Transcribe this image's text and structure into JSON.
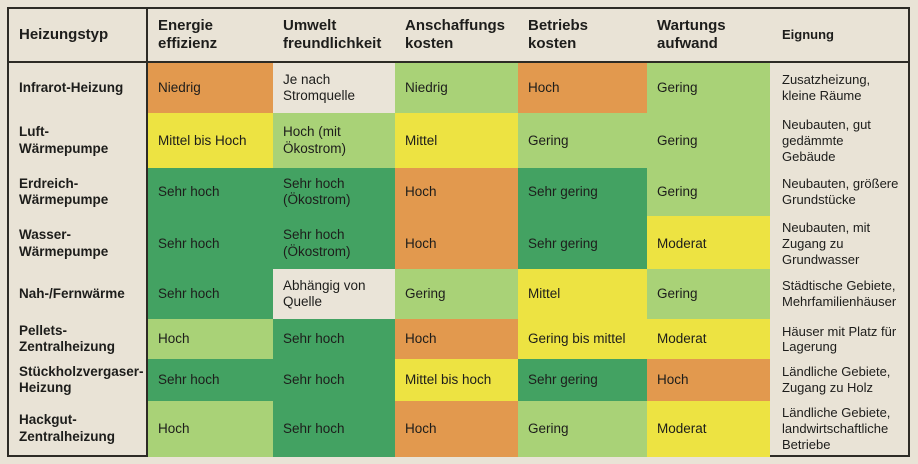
{
  "palette": {
    "orange": "#e2994e",
    "yellow": "#ede342",
    "light_green": "#a9d277",
    "dark_green": "#43a262",
    "neutral": "#eae4d8",
    "beige_bg": "#e9e3d6",
    "border": "#2d2b25",
    "text": "#1d1d1b"
  },
  "chart_data": {
    "type": "table",
    "title": "",
    "legend": "off",
    "color_levels": [
      "orange = ungünstig",
      "yellow = mittel",
      "light_green = gut",
      "dark_green = sehr gut",
      "neutral = abhängig"
    ],
    "columns": [
      "Heizungstyp",
      "Energie\neffizienz",
      "Umwelt\nfreundlichkeit",
      "Anschaffungs\nkosten",
      "Betriebs\nkosten",
      "Wartungs\naufwand",
      "Eignung"
    ],
    "rows": [
      {
        "label": "Infrarot-Heizung",
        "cells": [
          {
            "text": "Niedrig",
            "color": "orange"
          },
          {
            "text": "Je nach\nStromquelle",
            "color": "neutral"
          },
          {
            "text": "Niedrig",
            "color": "light_green"
          },
          {
            "text": "Hoch",
            "color": "orange"
          },
          {
            "text": "Gering",
            "color": "light_green"
          }
        ],
        "eignung": "Zusatzheizung,\nkleine Räume"
      },
      {
        "label": "Luft-Wärmepumpe",
        "cells": [
          {
            "text": "Mittel bis Hoch",
            "color": "yellow"
          },
          {
            "text": "Hoch (mit\nÖkostrom)",
            "color": "light_green"
          },
          {
            "text": "Mittel",
            "color": "yellow"
          },
          {
            "text": "Gering",
            "color": "light_green"
          },
          {
            "text": "Gering",
            "color": "light_green"
          }
        ],
        "eignung": "Neubauten, gut\ngedämmte\nGebäude"
      },
      {
        "label": "Erdreich-\nWärmepumpe",
        "cells": [
          {
            "text": "Sehr hoch",
            "color": "dark_green"
          },
          {
            "text": "Sehr hoch\n(Ökostrom)",
            "color": "dark_green"
          },
          {
            "text": "Hoch",
            "color": "orange"
          },
          {
            "text": "Sehr gering",
            "color": "dark_green"
          },
          {
            "text": "Gering",
            "color": "light_green"
          }
        ],
        "eignung": "Neubauten, größere\nGrundstücke"
      },
      {
        "label": "Wasser-\nWärmepumpe",
        "cells": [
          {
            "text": "Sehr hoch",
            "color": "dark_green"
          },
          {
            "text": "Sehr hoch\n(Ökostrom)",
            "color": "dark_green"
          },
          {
            "text": "Hoch",
            "color": "orange"
          },
          {
            "text": "Sehr gering",
            "color": "dark_green"
          },
          {
            "text": "Moderat",
            "color": "yellow"
          }
        ],
        "eignung": "Neubauten, mit\nZugang zu\nGrundwasser"
      },
      {
        "label": "Nah-/Fernwärme",
        "cells": [
          {
            "text": "Sehr hoch",
            "color": "dark_green"
          },
          {
            "text": "Abhängig von\nQuelle",
            "color": "neutral"
          },
          {
            "text": "Gering",
            "color": "light_green"
          },
          {
            "text": "Mittel",
            "color": "yellow"
          },
          {
            "text": "Gering",
            "color": "light_green"
          }
        ],
        "eignung": "Städtische Gebiete,\nMehrfamilienhäuser"
      },
      {
        "label": "Pellets-\nZentralheizung",
        "cells": [
          {
            "text": "Hoch",
            "color": "light_green"
          },
          {
            "text": "Sehr hoch",
            "color": "dark_green"
          },
          {
            "text": "Hoch",
            "color": "orange"
          },
          {
            "text": "Gering bis mittel",
            "color": "yellow"
          },
          {
            "text": "Moderat",
            "color": "yellow"
          }
        ],
        "eignung": "Häuser mit Platz für\nLagerung"
      },
      {
        "label": "Stückholzvergaser-\nHeizung",
        "cells": [
          {
            "text": "Sehr hoch",
            "color": "dark_green"
          },
          {
            "text": "Sehr hoch",
            "color": "dark_green"
          },
          {
            "text": "Mittel bis hoch",
            "color": "yellow"
          },
          {
            "text": "Sehr gering",
            "color": "dark_green"
          },
          {
            "text": "Hoch",
            "color": "orange"
          }
        ],
        "eignung": "Ländliche Gebiete,\nZugang zu Holz"
      },
      {
        "label": "Hackgut-\nZentralheizung",
        "cells": [
          {
            "text": "Hoch",
            "color": "light_green"
          },
          {
            "text": "Sehr hoch",
            "color": "dark_green"
          },
          {
            "text": "Hoch",
            "color": "orange"
          },
          {
            "text": "Gering",
            "color": "light_green"
          },
          {
            "text": "Moderat",
            "color": "yellow"
          }
        ],
        "eignung": "Ländliche Gebiete,\nlandwirtschaftliche\nBetriebe"
      }
    ]
  }
}
